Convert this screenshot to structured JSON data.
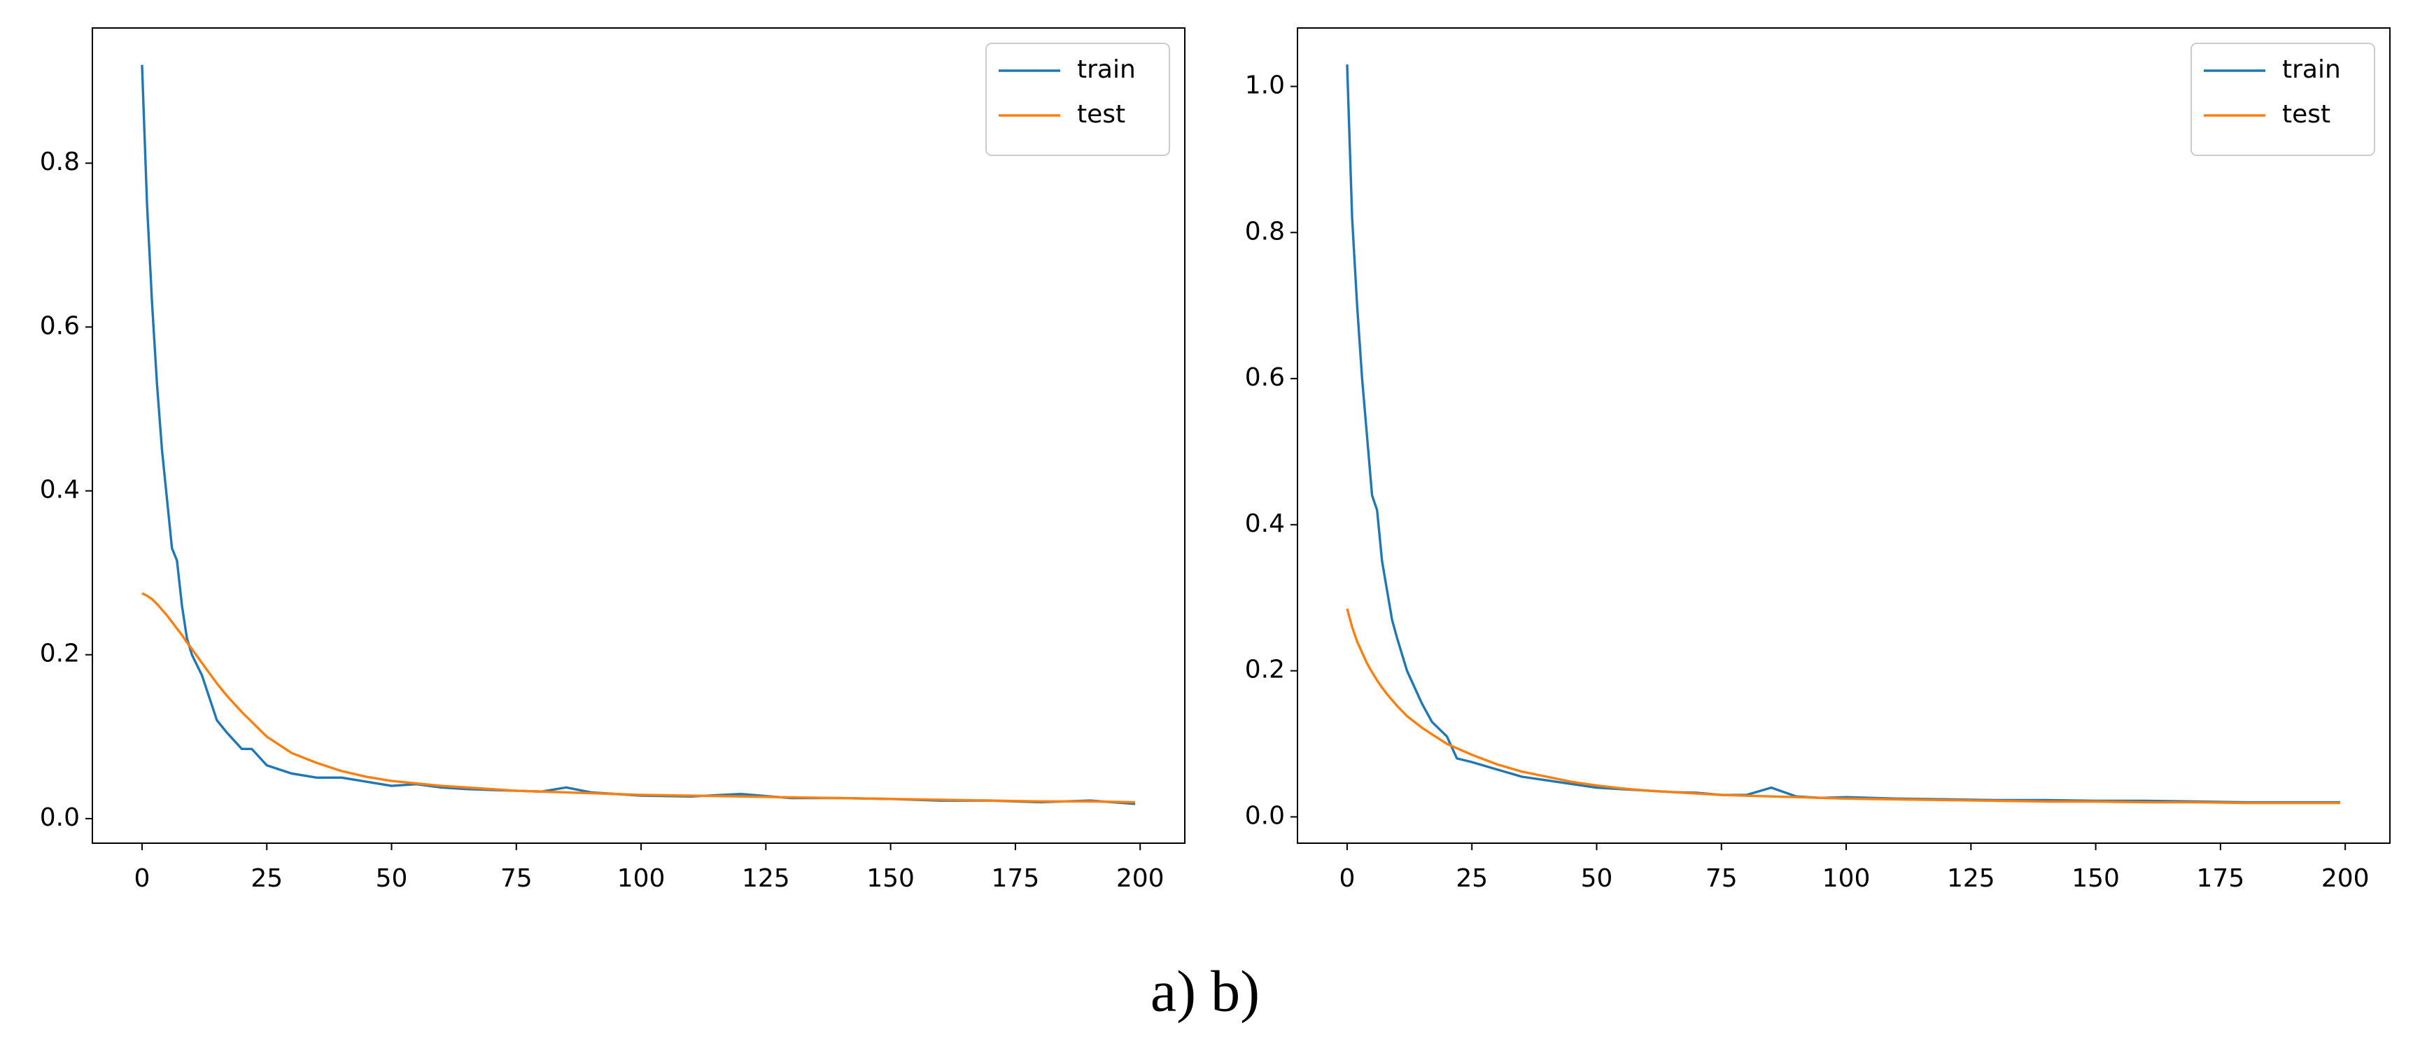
{
  "chart_data": [
    {
      "type": "line",
      "legend": "upper right",
      "grid": false,
      "x": [
        0,
        1,
        2,
        3,
        4,
        5,
        6,
        7,
        8,
        9,
        10,
        12,
        15,
        17,
        20,
        22,
        25,
        30,
        35,
        40,
        45,
        50,
        55,
        60,
        65,
        70,
        75,
        80,
        85,
        90,
        95,
        100,
        110,
        120,
        130,
        140,
        150,
        160,
        170,
        180,
        190,
        199
      ],
      "series": [
        {
          "name": "train",
          "color": "#1f77b4",
          "values": [
            0.92,
            0.75,
            0.63,
            0.53,
            0.45,
            0.39,
            0.33,
            0.315,
            0.26,
            0.22,
            0.2,
            0.175,
            0.12,
            0.105,
            0.085,
            0.085,
            0.065,
            0.055,
            0.05,
            0.05,
            0.045,
            0.04,
            0.042,
            0.038,
            0.036,
            0.035,
            0.034,
            0.033,
            0.038,
            0.032,
            0.03,
            0.028,
            0.027,
            0.03,
            0.025,
            0.025,
            0.024,
            0.022,
            0.022,
            0.02,
            0.022,
            0.018
          ]
        },
        {
          "name": "test",
          "color": "#ff7f0e",
          "values": [
            0.275,
            0.272,
            0.268,
            0.262,
            0.255,
            0.248,
            0.24,
            0.232,
            0.224,
            0.215,
            0.207,
            0.19,
            0.165,
            0.15,
            0.13,
            0.118,
            0.1,
            0.08,
            0.068,
            0.058,
            0.051,
            0.046,
            0.043,
            0.04,
            0.038,
            0.036,
            0.034,
            0.033,
            0.032,
            0.031,
            0.03,
            0.029,
            0.028,
            0.027,
            0.026,
            0.025,
            0.024,
            0.023,
            0.022,
            0.021,
            0.021,
            0.02
          ]
        }
      ],
      "xlim": [
        -9.95,
        208.95
      ],
      "xticks": [
        0,
        25,
        50,
        75,
        100,
        125,
        150,
        175,
        200
      ],
      "ylim": [
        -0.03,
        0.965
      ],
      "yticks": [
        {
          "value": 0,
          "label": "0.0"
        },
        {
          "value": 0.2,
          "label": "0.2"
        },
        {
          "value": 0.4,
          "label": "0.4"
        },
        {
          "value": 0.6,
          "label": "0.6"
        },
        {
          "value": 0.8,
          "label": "0.8"
        }
      ]
    },
    {
      "type": "line",
      "legend": "upper right",
      "grid": false,
      "x": [
        0,
        1,
        2,
        3,
        4,
        5,
        6,
        7,
        8,
        9,
        10,
        12,
        15,
        17,
        20,
        22,
        25,
        30,
        35,
        40,
        45,
        50,
        55,
        60,
        65,
        70,
        75,
        80,
        85,
        90,
        95,
        100,
        110,
        120,
        130,
        140,
        150,
        160,
        170,
        180,
        190,
        199
      ],
      "series": [
        {
          "name": "train",
          "color": "#1f77b4",
          "values": [
            1.03,
            0.82,
            0.7,
            0.6,
            0.52,
            0.44,
            0.42,
            0.35,
            0.31,
            0.27,
            0.245,
            0.2,
            0.155,
            0.13,
            0.11,
            0.08,
            0.075,
            0.065,
            0.055,
            0.05,
            0.045,
            0.04,
            0.038,
            0.036,
            0.034,
            0.033,
            0.03,
            0.03,
            0.04,
            0.028,
            0.026,
            0.027,
            0.025,
            0.024,
            0.023,
            0.023,
            0.022,
            0.022,
            0.021,
            0.02,
            0.02,
            0.02
          ]
        },
        {
          "name": "test",
          "color": "#ff7f0e",
          "values": [
            0.285,
            0.26,
            0.24,
            0.225,
            0.21,
            0.198,
            0.187,
            0.177,
            0.168,
            0.16,
            0.152,
            0.138,
            0.122,
            0.113,
            0.1,
            0.094,
            0.085,
            0.072,
            0.062,
            0.055,
            0.048,
            0.043,
            0.039,
            0.036,
            0.034,
            0.032,
            0.03,
            0.029,
            0.028,
            0.027,
            0.026,
            0.025,
            0.024,
            0.023,
            0.022,
            0.021,
            0.021,
            0.02,
            0.02,
            0.019,
            0.019,
            0.019
          ]
        }
      ],
      "xlim": [
        -9.95,
        208.95
      ],
      "xticks": [
        0,
        25,
        50,
        75,
        100,
        125,
        150,
        175,
        200
      ],
      "ylim": [
        -0.036,
        1.08
      ],
      "yticks": [
        {
          "value": 0,
          "label": "0.0"
        },
        {
          "value": 0.2,
          "label": "0.2"
        },
        {
          "value": 0.4,
          "label": "0.4"
        },
        {
          "value": 0.6,
          "label": "0.6"
        },
        {
          "value": 0.8,
          "label": "0.8"
        },
        {
          "value": 1.0,
          "label": "1.0"
        }
      ]
    }
  ],
  "caption": "a) b)"
}
